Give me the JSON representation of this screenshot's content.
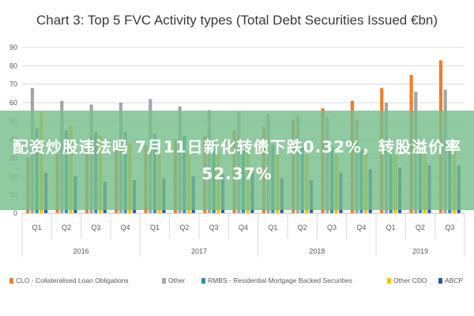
{
  "chart_data": {
    "type": "bar",
    "title": "Chart 3: Top 5 FVC Activity types (Total Debt Securities Issued €bn)",
    "ylim": [
      0,
      90
    ],
    "yticks": [
      "0",
      "10",
      "20",
      "30",
      "40",
      "50",
      "60",
      "70",
      "80",
      "90"
    ],
    "grid": true,
    "legend_position": "bottom",
    "categories": [
      "Q1",
      "Q2",
      "Q3",
      "Q4",
      "Q1",
      "Q2",
      "Q3",
      "Q4",
      "Q1",
      "Q2",
      "Q3",
      "Q4",
      "Q1",
      "Q2",
      "Q3"
    ],
    "years": [
      {
        "label": "2016",
        "quarters": 4
      },
      {
        "label": "2017",
        "quarters": 4
      },
      {
        "label": "2018",
        "quarters": 4
      },
      {
        "label": "2019",
        "quarters": 3
      }
    ],
    "series": [
      {
        "name": "CLO - Collateralised Loan Obligations",
        "color": "#ed7d31",
        "values": [
          30,
          32,
          34,
          35,
          37,
          40,
          42,
          45,
          47,
          51,
          57,
          61,
          68,
          75,
          83
        ]
      },
      {
        "name": "Other",
        "color": "#a5a5a5",
        "values": [
          68,
          61,
          59,
          60,
          62,
          58,
          56,
          55,
          54,
          53,
          52,
          51,
          60,
          66,
          67
        ]
      },
      {
        "name": "RMBS - Residential Mortgage Backed Securities",
        "color": "#2e8fa8",
        "values": [
          46,
          45,
          44,
          44,
          43,
          42,
          40,
          38,
          37,
          36,
          36,
          35,
          34,
          34,
          34
        ]
      },
      {
        "name": "Other CDO",
        "color": "#ffc000",
        "values": [
          55,
          48,
          42,
          38,
          36,
          34,
          33,
          33,
          32,
          32,
          32,
          33,
          33,
          34,
          35
        ]
      },
      {
        "name": "ABCP",
        "color": "#2f5597",
        "values": [
          22,
          20,
          17,
          18,
          19,
          20,
          21,
          23,
          19,
          18,
          22,
          24,
          25,
          26,
          26
        ]
      }
    ]
  },
  "overlay": {
    "text": "配资炒股违法吗 7月11日新化转债下跌0.32%，转股溢价率52.37%"
  }
}
